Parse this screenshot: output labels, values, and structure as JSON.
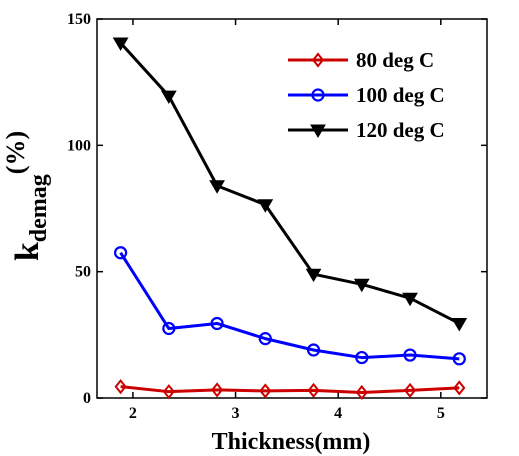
{
  "chart_data": {
    "type": "line",
    "x": [
      1.88,
      2.35,
      2.82,
      3.29,
      3.76,
      4.23,
      4.7,
      5.18
    ],
    "series": [
      {
        "name": "80 deg C",
        "color": "#cc0000",
        "marker": "diamond",
        "values": [
          4.5,
          2.5,
          3.2,
          2.8,
          3.0,
          2.2,
          3.0,
          4.0
        ]
      },
      {
        "name": "100 deg C",
        "color": "#0000ff",
        "marker": "circle",
        "values": [
          57.5,
          27.5,
          29.5,
          23.5,
          19.0,
          16.0,
          17.0,
          15.5
        ]
      },
      {
        "name": "120 deg C",
        "color": "#000000",
        "marker": "triangle-down",
        "values": [
          140.5,
          119.5,
          84.0,
          76.5,
          49.0,
          45.0,
          39.5,
          29.5
        ]
      }
    ],
    "xlabel": "Thickness(mm)",
    "ylabel": {
      "main": "k",
      "sub": "demag",
      "suffix": "(%)"
    },
    "xlim": [
      1.65,
      5.45
    ],
    "ylim": [
      0,
      150
    ],
    "xticks": [
      2,
      3,
      4,
      5
    ],
    "yticks": [
      0,
      50,
      100,
      150
    ],
    "grid": false,
    "legend_position": "top-right"
  }
}
